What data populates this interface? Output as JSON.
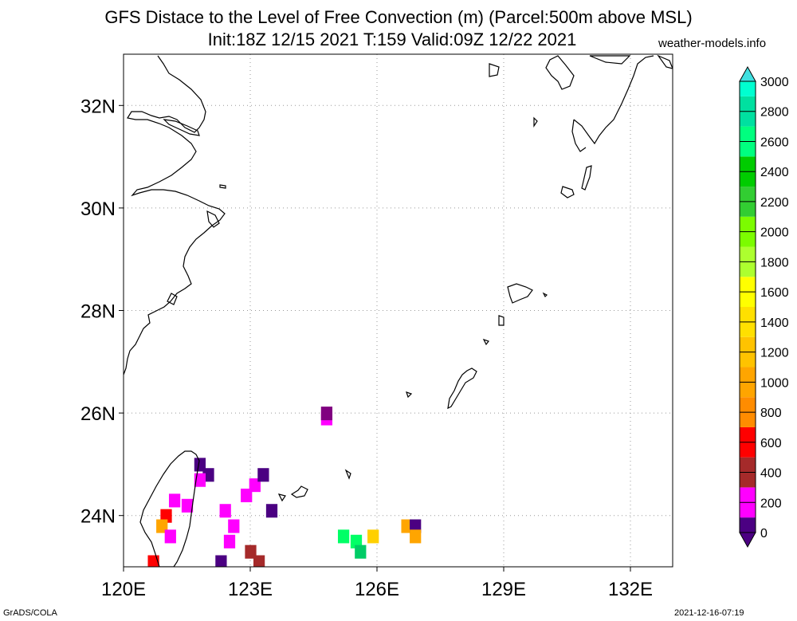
{
  "title": {
    "line1": "GFS Distace to the Level of Free Convection (m) (Parcel:500m above MSL)",
    "line2": "Init:18Z 12/15 2021 T:159 Valid:09Z 12/22 2021"
  },
  "credit": "weather-models.info",
  "footer": {
    "left": "GrADS/COLA",
    "right": "2021-12-16-07:19"
  },
  "map": {
    "lon_range": [
      120,
      133
    ],
    "lat_range": [
      23,
      33
    ],
    "lon_ticks": [
      {
        "value": 120,
        "label": "120E"
      },
      {
        "value": 123,
        "label": "123E"
      },
      {
        "value": 126,
        "label": "126E"
      },
      {
        "value": 129,
        "label": "129E"
      },
      {
        "value": 132,
        "label": "132E"
      }
    ],
    "lat_ticks": [
      {
        "value": 32,
        "label": "32N"
      },
      {
        "value": 30,
        "label": "30N"
      },
      {
        "value": 28,
        "label": "28N"
      },
      {
        "value": 26,
        "label": "26N"
      },
      {
        "value": 24,
        "label": "24N"
      }
    ],
    "grid": "dotted",
    "coast_color": "#000000"
  },
  "colorbar": {
    "levels": [
      "0",
      "200",
      "400",
      "600",
      "800",
      "1000",
      "1200",
      "1400",
      "1600",
      "1800",
      "2000",
      "2200",
      "2400",
      "2600",
      "2800",
      "3000"
    ],
    "colors": [
      "#4b0082",
      "#ff00ff",
      "#a52a2a",
      "#ff0000",
      "#ff8c00",
      "#ffa500",
      "#ffc300",
      "#ffe000",
      "#ffff00",
      "#adff2f",
      "#7cfc00",
      "#32cd32",
      "#00cc00",
      "#00ff7f",
      "#00e0a0",
      "#00ffd0",
      "#40e0e0"
    ],
    "end_low": "#4b0082",
    "end_high": "#40e0e0"
  },
  "field_cells": [
    {
      "lon": 124.8,
      "lat": 25.9,
      "color": "#ff00ff"
    },
    {
      "lon": 124.8,
      "lat": 26.0,
      "color": "#800080"
    },
    {
      "lon": 121.8,
      "lat": 25.0,
      "color": "#4b0082"
    },
    {
      "lon": 122.0,
      "lat": 24.8,
      "color": "#4b0082"
    },
    {
      "lon": 121.8,
      "lat": 24.7,
      "color": "#ff00ff"
    },
    {
      "lon": 121.2,
      "lat": 24.3,
      "color": "#ff00ff"
    },
    {
      "lon": 121.0,
      "lat": 24.0,
      "color": "#ff0000"
    },
    {
      "lon": 120.9,
      "lat": 23.8,
      "color": "#ffa500"
    },
    {
      "lon": 121.1,
      "lat": 23.6,
      "color": "#ff00ff"
    },
    {
      "lon": 120.7,
      "lat": 23.1,
      "color": "#ff0000"
    },
    {
      "lon": 121.5,
      "lat": 24.2,
      "color": "#ff00ff"
    },
    {
      "lon": 122.4,
      "lat": 24.1,
      "color": "#ff00ff"
    },
    {
      "lon": 122.6,
      "lat": 23.8,
      "color": "#ff00ff"
    },
    {
      "lon": 122.5,
      "lat": 23.5,
      "color": "#ff00ff"
    },
    {
      "lon": 122.9,
      "lat": 24.4,
      "color": "#ff00ff"
    },
    {
      "lon": 123.1,
      "lat": 24.6,
      "color": "#ff00ff"
    },
    {
      "lon": 123.3,
      "lat": 24.8,
      "color": "#4b0082"
    },
    {
      "lon": 123.5,
      "lat": 24.1,
      "color": "#4b0082"
    },
    {
      "lon": 123.0,
      "lat": 23.3,
      "color": "#a52a2a"
    },
    {
      "lon": 123.2,
      "lat": 23.1,
      "color": "#a52a2a"
    },
    {
      "lon": 122.3,
      "lat": 23.1,
      "color": "#4b0082"
    },
    {
      "lon": 125.2,
      "lat": 23.6,
      "color": "#00ff66"
    },
    {
      "lon": 125.5,
      "lat": 23.5,
      "color": "#00ff66"
    },
    {
      "lon": 125.6,
      "lat": 23.3,
      "color": "#00cc66"
    },
    {
      "lon": 125.9,
      "lat": 23.6,
      "color": "#ffd000"
    },
    {
      "lon": 126.7,
      "lat": 23.8,
      "color": "#ffa500"
    },
    {
      "lon": 126.9,
      "lat": 23.8,
      "color": "#4b0082"
    },
    {
      "lon": 126.9,
      "lat": 23.6,
      "color": "#ffa500"
    }
  ]
}
